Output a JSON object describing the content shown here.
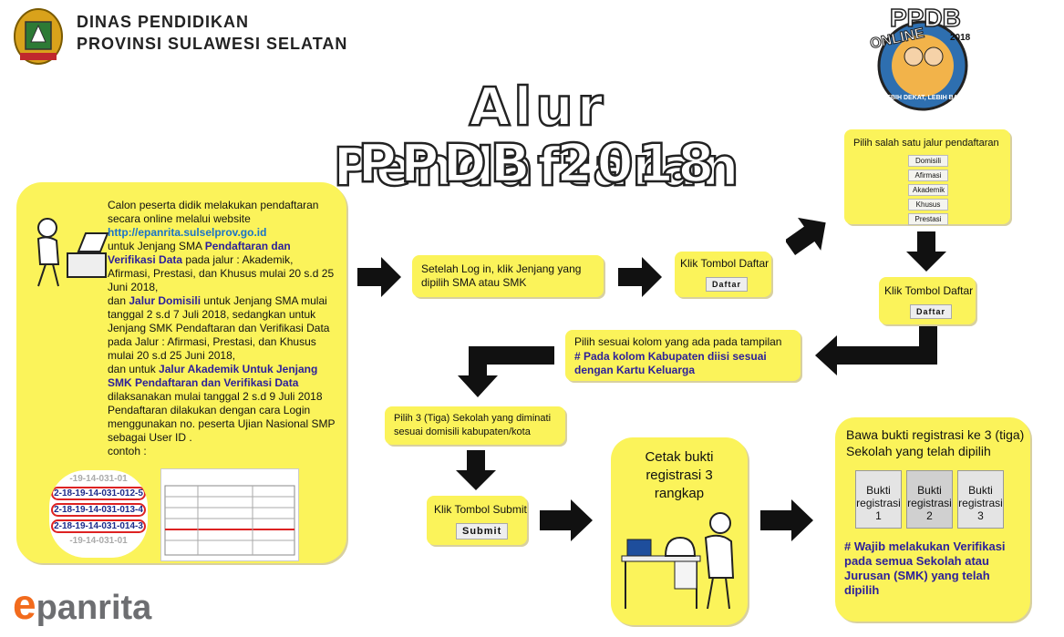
{
  "header": {
    "org_line1": "DINAS PENDIDIKAN",
    "org_line2": "PROVINSI SULAWESI SELATAN"
  },
  "logo_top_right": {
    "title": "PPDB",
    "subtitle": "ONLINE",
    "year": "2018",
    "slogan": "LEBIH DEKAT, LEBIH BAIK"
  },
  "diagram_title": {
    "line1": "Alur Pendaftaran",
    "line2": "PPDB 2018"
  },
  "left_box": {
    "p1": "Calon peserta didik melakukan pendaftaran secara online melalui website",
    "url": "http://epanrita.sulselprov.go.id",
    "p2a": "untuk Jenjang SMA ",
    "p2b": "Pendaftaran dan Verifikasi Data",
    "p2c": " pada jalur : Akademik, Afirmasi, Prestasi, dan Khusus mulai 20 s.d 25 Juni 2018,",
    "p3a": "dan ",
    "p3b": "Jalur Domisili",
    "p3c": " untuk Jenjang SMA mulai tanggal 2 s.d 7 Juli 2018, sedangkan untuk Jenjang SMK Pendaftaran dan Verifikasi Data pada Jalur : Afirmasi, Prestasi, dan Khusus mulai 20 s.d 25 Juni 2018,",
    "p4a": "dan untuk ",
    "p4b": "Jalur Akademik Untuk Jenjang SMK Pendaftaran dan Verifikasi Data",
    "p4c": " dilaksanakan mulai tanggal 2 s.d 9 Juli 2018",
    "p5": "Pendaftaran dilakukan dengan cara Login menggunakan no. peserta Ujian Nasional SMP sebagai User ID .",
    "p6": "contoh :",
    "ids": [
      "-19-14-031-01",
      "2-18-19-14-031-012-5",
      "2-18-19-14-031-013-4",
      "2-18-19-14-031-014-3",
      "-19-14-031-01"
    ]
  },
  "step_login": "Setelah Log in, klik Jenjang yang dipilih SMA atau SMK",
  "step_daftar1": {
    "label": "Klik Tombol Daftar",
    "button": "Daftar"
  },
  "step_jalur": {
    "label": "Pilih salah satu jalur pendaftaran",
    "options": [
      "Domisili",
      "Afirmasi",
      "Akademik",
      "Khusus",
      "Prestasi"
    ]
  },
  "step_daftar2": {
    "label": "Klik Tombol Daftar",
    "button": "Daftar"
  },
  "step_kolom": {
    "text": "Pilih sesuai kolom yang ada pada tampilan",
    "note": "# Pada kolom Kabupaten diisi sesuai dengan Kartu Keluarga"
  },
  "step_sekolah": "Pilih 3 (Tiga) Sekolah yang diminati sesuai domisili kabupaten/kota",
  "step_submit": {
    "label": "Klik Tombol Submit",
    "button": "Submit"
  },
  "step_cetak": {
    "text": "Cetak bukti registrasi 3 rangkap"
  },
  "step_bawa": {
    "text": "Bawa bukti registrasi ke 3 (tiga) Sekolah yang telah dipilih",
    "receipts": [
      {
        "line1": "Bukti",
        "line2": "registrasi",
        "num": "1"
      },
      {
        "line1": "Bukti",
        "line2": "registrasi",
        "num": "2"
      },
      {
        "line1": "Bukti",
        "line2": "registrasi",
        "num": "3"
      }
    ],
    "note": "# Wajib melakukan Verifikasi pada semua Sekolah atau Jurusan (SMK) yang telah dipilih"
  },
  "footer_logo": {
    "prefix": "e",
    "rest": "panrita"
  },
  "colors": {
    "box": "#fbf35a",
    "link": "#1a73c9",
    "note": "#2c1f9a",
    "logo_orange": "#f26b1d",
    "logo_gray": "#6d6e71"
  }
}
